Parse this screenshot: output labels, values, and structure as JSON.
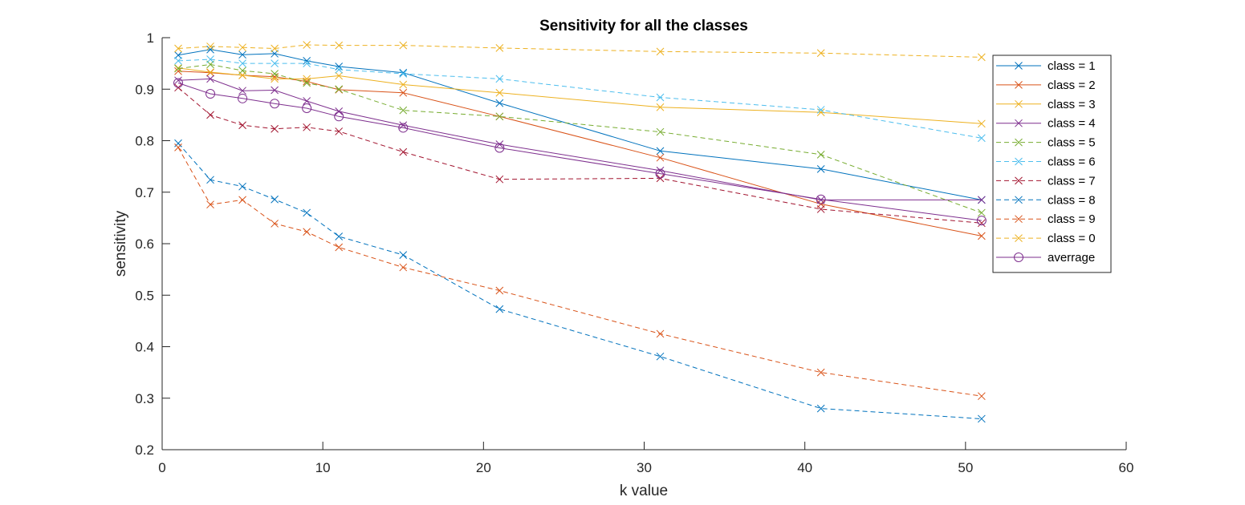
{
  "chart_data": {
    "type": "line",
    "title": "Sensitivity for all the classes",
    "xlabel": "k value",
    "ylabel": "sensitivity",
    "xlim": [
      0,
      60
    ],
    "ylim": [
      0.2,
      1
    ],
    "xticks": [
      0,
      10,
      20,
      30,
      40,
      50,
      60
    ],
    "yticks": [
      0.2,
      0.3,
      0.4,
      0.5,
      0.6,
      0.7,
      0.8,
      0.9,
      1
    ],
    "ytick_labels": [
      "0.2",
      "0.3",
      "0.4",
      "0.5",
      "0.6",
      "0.7",
      "0.8",
      "0.9",
      "1"
    ],
    "grid": false,
    "legend_position": "top-right",
    "x": [
      1,
      3,
      5,
      7,
      9,
      11,
      15,
      21,
      31,
      41,
      51
    ],
    "series": [
      {
        "name": "class = 1",
        "color": "#0072BD",
        "dash": "solid",
        "marker": "x",
        "values": [
          0.966,
          0.977,
          0.967,
          0.969,
          0.955,
          0.944,
          0.932,
          0.873,
          0.78,
          0.745,
          0.685
        ]
      },
      {
        "name": "class = 2",
        "color": "#D95319",
        "dash": "solid",
        "marker": "x",
        "values": [
          0.935,
          0.932,
          0.927,
          0.924,
          0.915,
          0.899,
          0.893,
          0.847,
          0.767,
          0.677,
          0.615
        ]
      },
      {
        "name": "class = 3",
        "color": "#EDB120",
        "dash": "solid",
        "marker": "x",
        "values": [
          0.941,
          0.933,
          0.927,
          0.92,
          0.92,
          0.926,
          0.909,
          0.893,
          0.865,
          0.855,
          0.833
        ]
      },
      {
        "name": "class = 4",
        "color": "#7E2F8E",
        "dash": "solid",
        "marker": "x",
        "values": [
          0.917,
          0.92,
          0.897,
          0.898,
          0.877,
          0.857,
          0.83,
          0.793,
          0.742,
          0.685,
          0.685
        ]
      },
      {
        "name": "class = 5",
        "color": "#77AC30",
        "dash": "dashed",
        "marker": "x",
        "values": [
          0.94,
          0.948,
          0.936,
          0.93,
          0.912,
          0.9,
          0.859,
          0.847,
          0.817,
          0.773,
          0.66
        ]
      },
      {
        "name": "class = 6",
        "color": "#4DBEEE",
        "dash": "dashed",
        "marker": "x",
        "values": [
          0.955,
          0.958,
          0.95,
          0.95,
          0.95,
          0.938,
          0.93,
          0.92,
          0.884,
          0.86,
          0.805
        ]
      },
      {
        "name": "class = 7",
        "color": "#A2142F",
        "dash": "dashed",
        "marker": "x",
        "values": [
          0.903,
          0.85,
          0.83,
          0.823,
          0.826,
          0.818,
          0.778,
          0.725,
          0.727,
          0.667,
          0.64
        ]
      },
      {
        "name": "class = 8",
        "color": "#0072BD",
        "dash": "dashed",
        "marker": "x",
        "values": [
          0.795,
          0.724,
          0.711,
          0.686,
          0.66,
          0.614,
          0.578,
          0.473,
          0.381,
          0.28,
          0.26
        ]
      },
      {
        "name": "class = 9",
        "color": "#D95319",
        "dash": "dashed",
        "marker": "x",
        "values": [
          0.787,
          0.676,
          0.685,
          0.639,
          0.623,
          0.593,
          0.554,
          0.509,
          0.425,
          0.35,
          0.304
        ]
      },
      {
        "name": "class = 0",
        "color": "#EDB120",
        "dash": "dashed",
        "marker": "x",
        "values": [
          0.979,
          0.983,
          0.981,
          0.979,
          0.986,
          0.985,
          0.985,
          0.98,
          0.973,
          0.97,
          0.962
        ]
      },
      {
        "name": "averrage",
        "color": "#7E2F8E",
        "dash": "solid",
        "marker": "o",
        "values": [
          0.912,
          0.891,
          0.882,
          0.872,
          0.863,
          0.847,
          0.825,
          0.786,
          0.736,
          0.686,
          0.645
        ]
      }
    ]
  }
}
